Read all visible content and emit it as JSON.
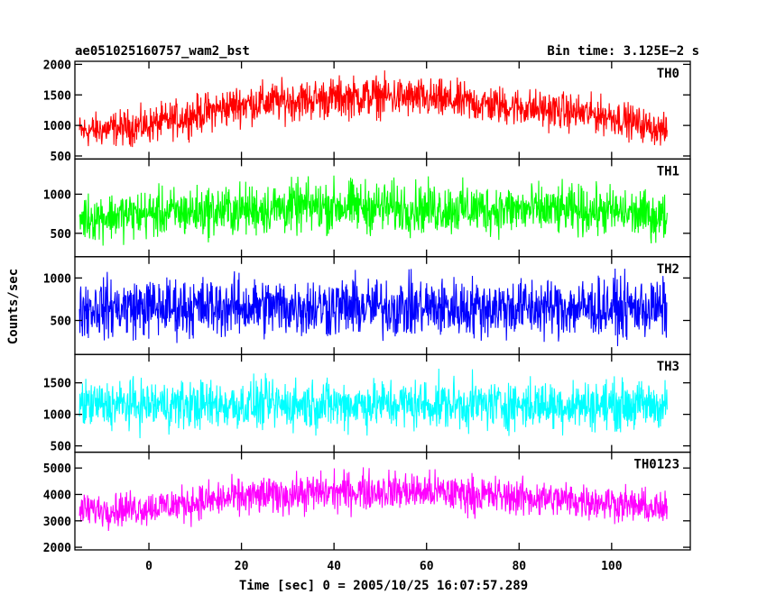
{
  "chart_data": {
    "type": "line",
    "title_left": "ae051025160757_wam2_bst",
    "title_right": "Bin time: 3.125E−2 s",
    "xlabel": "Time [sec] 0 = 2005/10/25 16:07:57.289",
    "ylabel": "Counts/sec",
    "xlim": [
      -16,
      117
    ],
    "data_x_range": [
      -15,
      112
    ],
    "x_ticks": [
      "0",
      "20",
      "40",
      "60",
      "80",
      "100"
    ],
    "x_tick_values": [
      0,
      20,
      40,
      60,
      80,
      100
    ],
    "grid": false,
    "legend": "inline-labels top-right of each panel",
    "panels": [
      {
        "name": "TH0",
        "color": "#ff0000",
        "ylim": [
          450,
          2050
        ],
        "y_tick_labels": [
          "500",
          "1000",
          "1500",
          "2000"
        ],
        "y_tick_values": [
          500,
          1000,
          1500,
          2000
        ],
        "envelope": {
          "x": [
            -15,
            0,
            20,
            40,
            50,
            60,
            80,
            100,
            112
          ],
          "mean": [
            900,
            1000,
            1350,
            1450,
            1480,
            1430,
            1300,
            1150,
            900
          ],
          "spread": [
            350,
            380,
            420,
            430,
            430,
            420,
            400,
            380,
            320
          ]
        }
      },
      {
        "name": "TH1",
        "color": "#00ff00",
        "ylim": [
          200,
          1450
        ],
        "y_tick_labels": [
          "500",
          "1000"
        ],
        "y_tick_values": [
          500,
          1000
        ],
        "envelope": {
          "x": [
            -15,
            0,
            20,
            40,
            60,
            80,
            100,
            112
          ],
          "mean": [
            700,
            750,
            800,
            850,
            820,
            800,
            780,
            700
          ],
          "spread": [
            380,
            400,
            420,
            430,
            420,
            410,
            400,
            380
          ]
        }
      },
      {
        "name": "TH2",
        "color": "#0000ff",
        "ylim": [
          100,
          1250
        ],
        "y_tick_labels": [
          "500",
          "1000"
        ],
        "y_tick_values": [
          500,
          1000
        ],
        "envelope": {
          "x": [
            -15,
            0,
            20,
            40,
            60,
            80,
            100,
            112
          ],
          "mean": [
            650,
            650,
            660,
            660,
            650,
            650,
            650,
            640
          ],
          "spread": [
            440,
            450,
            450,
            450,
            450,
            450,
            450,
            440
          ]
        }
      },
      {
        "name": "TH3",
        "color": "#00ffff",
        "ylim": [
          400,
          1950
        ],
        "y_tick_labels": [
          "500",
          "1000",
          "1500"
        ],
        "y_tick_values": [
          500,
          1000,
          1500
        ],
        "envelope": {
          "x": [
            -15,
            0,
            20,
            40,
            60,
            80,
            100,
            112
          ],
          "mean": [
            1150,
            1150,
            1150,
            1160,
            1160,
            1150,
            1150,
            1140
          ],
          "spread": [
            480,
            500,
            500,
            510,
            510,
            500,
            500,
            480
          ]
        }
      },
      {
        "name": "TH0123",
        "color": "#ff00ff",
        "ylim": [
          1900,
          5600
        ],
        "y_tick_labels": [
          "2000",
          "3000",
          "4000",
          "5000"
        ],
        "y_tick_values": [
          2000,
          3000,
          4000,
          5000
        ],
        "envelope": {
          "x": [
            -15,
            0,
            20,
            40,
            50,
            60,
            80,
            100,
            112
          ],
          "mean": [
            3400,
            3500,
            3900,
            4100,
            4150,
            4100,
            3900,
            3700,
            3400
          ],
          "spread": [
            800,
            850,
            900,
            950,
            950,
            950,
            900,
            850,
            800
          ]
        }
      }
    ]
  }
}
